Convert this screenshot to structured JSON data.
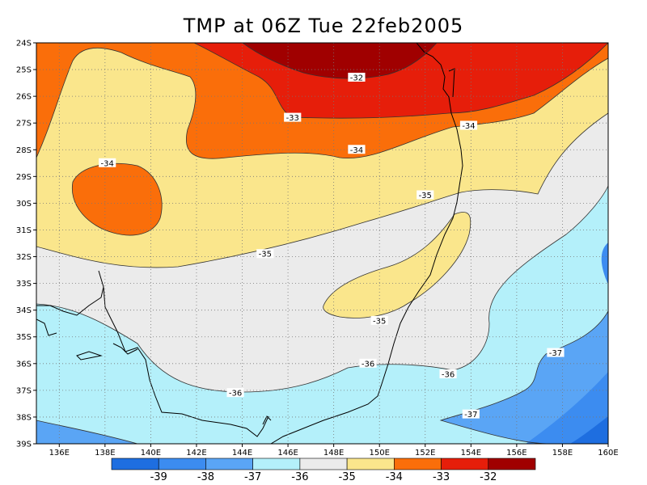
{
  "title": "TMP at 06Z Tue 22feb2005",
  "map": {
    "variable": "TMP",
    "lat_ticks": [
      "24S",
      "25S",
      "26S",
      "27S",
      "28S",
      "29S",
      "30S",
      "31S",
      "32S",
      "33S",
      "34S",
      "35S",
      "36S",
      "37S",
      "38S",
      "39S"
    ],
    "lon_ticks": [
      "136E",
      "138E",
      "140E",
      "142E",
      "144E",
      "146E",
      "148E",
      "150E",
      "152E",
      "154E",
      "156E",
      "158E",
      "160E"
    ],
    "grid": true,
    "contour_labels": [
      {
        "text": "-32",
        "lon": 149.0,
        "lat": -25.3
      },
      {
        "text": "-33",
        "lon": 146.2,
        "lat": -26.8
      },
      {
        "text": "-34",
        "lon": 153.9,
        "lat": -27.1
      },
      {
        "text": "-34",
        "lon": 149.0,
        "lat": -28.0
      },
      {
        "text": "-34",
        "lon": 138.1,
        "lat": -28.5
      },
      {
        "text": "-35",
        "lon": 152.0,
        "lat": -29.7
      },
      {
        "text": "-35",
        "lon": 145.0,
        "lat": -31.9
      },
      {
        "text": "-35",
        "lon": 150.0,
        "lat": -34.4
      },
      {
        "text": "-36",
        "lon": 149.5,
        "lat": -36.0
      },
      {
        "text": "-36",
        "lon": 153.0,
        "lat": -36.4
      },
      {
        "text": "-36",
        "lon": 143.7,
        "lat": -37.1
      },
      {
        "text": "-37",
        "lon": 157.7,
        "lat": -35.6
      },
      {
        "text": "-37",
        "lon": 154.0,
        "lat": -37.9
      }
    ]
  },
  "colorbar": {
    "labels": [
      "-39",
      "-38",
      "-37",
      "-36",
      "-35",
      "-34",
      "-33",
      "-32"
    ],
    "colors": [
      "#1e6ee0",
      "#3c8cf0",
      "#5aa5f5",
      "#b4f0fa",
      "#ebebeb",
      "#fae68c",
      "#fa6e0a",
      "#e61e0a",
      "#a00000"
    ]
  }
}
